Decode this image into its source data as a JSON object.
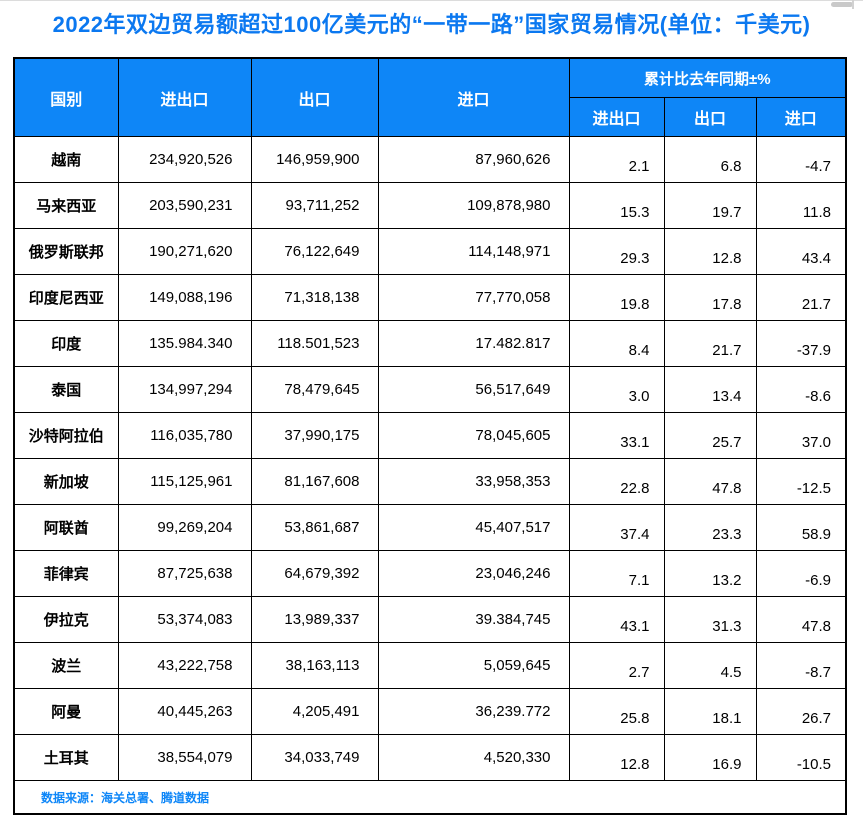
{
  "chart_data": {
    "type": "table",
    "title": "2022年双边贸易额超过100亿美元的“一带一路”国家贸易情况(单位：千美元)",
    "headers": {
      "country": "国别",
      "total": "进出口",
      "export": "出口",
      "import": "进口",
      "yoy_group": "累计比去年同期±%",
      "yoy_total": "进出口",
      "yoy_export": "出口",
      "yoy_import": "进口"
    },
    "rows": [
      {
        "country": "越南",
        "total": "234,920,526",
        "export": "146,959,900",
        "import": "87,960,626",
        "yoy_total": "2.1",
        "yoy_export": "6.8",
        "yoy_import": "-4.7"
      },
      {
        "country": "马来西亚",
        "total": "203,590,231",
        "export": "93,711,252",
        "import": "109,878,980",
        "yoy_total": "15.3",
        "yoy_export": "19.7",
        "yoy_import": "11.8"
      },
      {
        "country": "俄罗斯联邦",
        "total": "190,271,620",
        "export": "76,122,649",
        "import": "114,148,971",
        "yoy_total": "29.3",
        "yoy_export": "12.8",
        "yoy_import": "43.4"
      },
      {
        "country": "印度尼西亚",
        "total": "149,088,196",
        "export": "71,318,138",
        "import": "77,770,058",
        "yoy_total": "19.8",
        "yoy_export": "17.8",
        "yoy_import": "21.7"
      },
      {
        "country": "印度",
        "total": "135.984.340",
        "export": "118.501,523",
        "import": "17.482.817",
        "yoy_total": "8.4",
        "yoy_export": "21.7",
        "yoy_import": "-37.9"
      },
      {
        "country": "泰国",
        "total": "134,997,294",
        "export": "78,479,645",
        "import": "56,517,649",
        "yoy_total": "3.0",
        "yoy_export": "13.4",
        "yoy_import": "-8.6"
      },
      {
        "country": "沙特阿拉伯",
        "total": "116,035,780",
        "export": "37,990,175",
        "import": "78,045,605",
        "yoy_total": "33.1",
        "yoy_export": "25.7",
        "yoy_import": "37.0"
      },
      {
        "country": "新加坡",
        "total": "115,125,961",
        "export": "81,167,608",
        "import": "33,958,353",
        "yoy_total": "22.8",
        "yoy_export": "47.8",
        "yoy_import": "-12.5"
      },
      {
        "country": "阿联酋",
        "total": "99,269,204",
        "export": "53,861,687",
        "import": "45,407,517",
        "yoy_total": "37.4",
        "yoy_export": "23.3",
        "yoy_import": "58.9"
      },
      {
        "country": "菲律宾",
        "total": "87,725,638",
        "export": "64,679,392",
        "import": "23,046,246",
        "yoy_total": "7.1",
        "yoy_export": "13.2",
        "yoy_import": "-6.9"
      },
      {
        "country": "伊拉克",
        "total": "53,374,083",
        "export": "13,989,337",
        "import": "39.384,745",
        "yoy_total": "43.1",
        "yoy_export": "31.3",
        "yoy_import": "47.8"
      },
      {
        "country": "波兰",
        "total": "43,222,758",
        "export": "38,163,113",
        "import": "5,059,645",
        "yoy_total": "2.7",
        "yoy_export": "4.5",
        "yoy_import": "-8.7"
      },
      {
        "country": "阿曼",
        "total": "40,445,263",
        "export": "4,205,491",
        "import": "36,239.772",
        "yoy_total": "25.8",
        "yoy_export": "18.1",
        "yoy_import": "26.7"
      },
      {
        "country": "土耳其",
        "total": "38,554,079",
        "export": "34,033,749",
        "import": "4,520,330",
        "yoy_total": "12.8",
        "yoy_export": "16.9",
        "yoy_import": "-10.5"
      }
    ],
    "source": "数据来源：海关总署、腾道数据"
  },
  "colors": {
    "header_blue": "#0e86f7",
    "title_blue": "#0b78f0",
    "source_blue": "#0d86f8",
    "border_black": "#000000"
  }
}
